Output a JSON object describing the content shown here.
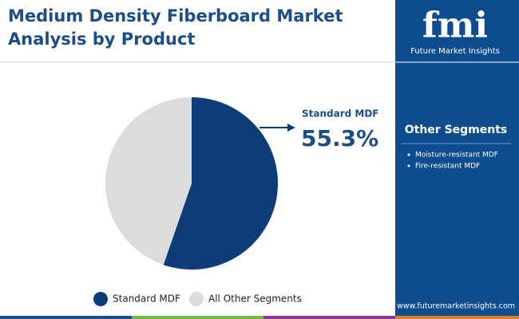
{
  "chart_data": {
    "type": "pie",
    "title": "Medium Density Fiberboard Market Analysis by Product",
    "categories": [
      "Standard MDF",
      "All Other Segments"
    ],
    "values": [
      55.3,
      44.7
    ],
    "value_labels": [
      "55.3%",
      null
    ],
    "colors": [
      "#0c3d78",
      "#dcdcdc"
    ],
    "legend": "bottom"
  },
  "sidebar": {
    "logo": "fmi",
    "brand": "Future Market Insights",
    "heading": "Other Segments",
    "items": [
      "Moisture-resistant MDF",
      "Fire-resistant MDF"
    ],
    "url": "www.futuremarketinsights.com"
  }
}
